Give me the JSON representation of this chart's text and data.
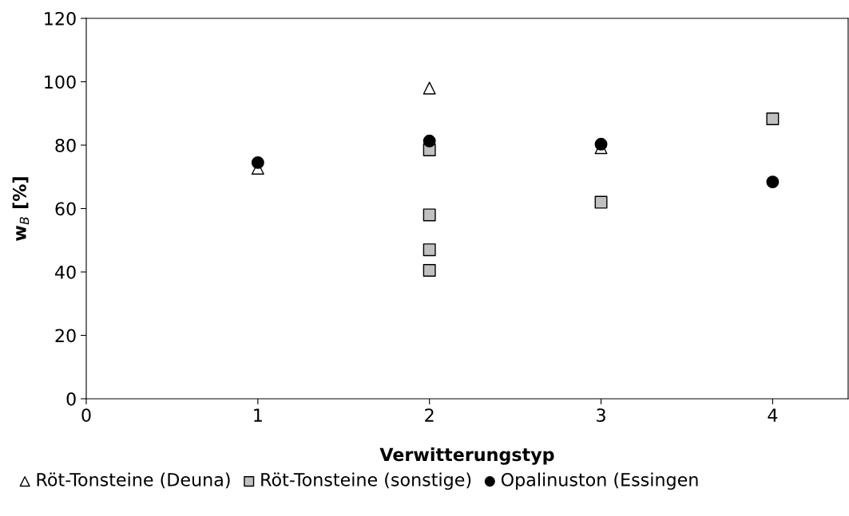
{
  "chart_data": {
    "type": "scatter",
    "xlabel": "Verwitterungstyp",
    "ylabel": "w$_{B}$ [%]",
    "xlim": [
      0,
      4.44
    ],
    "xticks": [
      0,
      1,
      2,
      3,
      4
    ],
    "ylim": [
      0,
      120
    ],
    "yticks": [
      0,
      20,
      40,
      60,
      80,
      100,
      120
    ],
    "grid": false,
    "legend": "bottom",
    "series": [
      {
        "name": "Röt-Tonsteine (Deuna)",
        "color": "#ffffff",
        "marker": "triangle",
        "x": [
          1,
          2,
          3
        ],
        "values": [
          72.7,
          98,
          79.2
        ]
      },
      {
        "name": "Röt-Tonsteine (sonstige)",
        "color": "#c0c0c0",
        "marker": "square",
        "x": [
          2,
          2,
          2,
          2,
          3,
          4
        ],
        "values": [
          78.5,
          58,
          47,
          40.5,
          62,
          88.3
        ]
      },
      {
        "name": "Opalinuston (Essingen",
        "color": "#000000",
        "marker": "circle",
        "x": [
          1,
          2,
          3,
          4
        ],
        "values": [
          74.5,
          81.3,
          80.3,
          68.4
        ]
      }
    ]
  }
}
